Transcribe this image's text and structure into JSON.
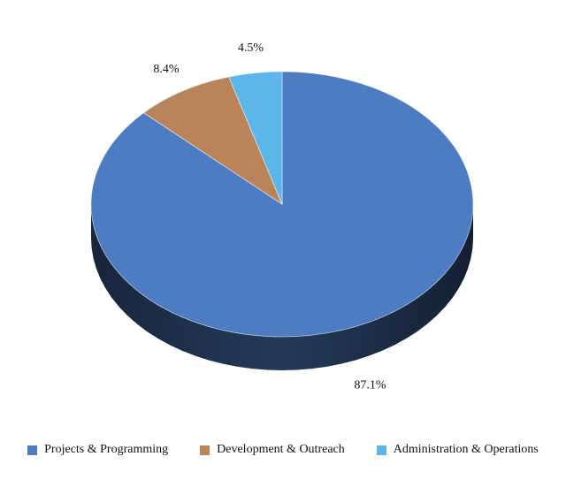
{
  "chart_data": {
    "type": "pie",
    "style": "3d",
    "categories": [
      "Projects & Programming",
      "Development & Outreach",
      "Administration & Operations"
    ],
    "values": [
      87.1,
      8.4,
      4.5
    ],
    "labels": [
      "87.1%",
      "8.4%",
      "4.5%"
    ],
    "colors": [
      "#4e7cc2",
      "#b9845a",
      "#5cb6ea"
    ],
    "legend_position": "bottom"
  }
}
